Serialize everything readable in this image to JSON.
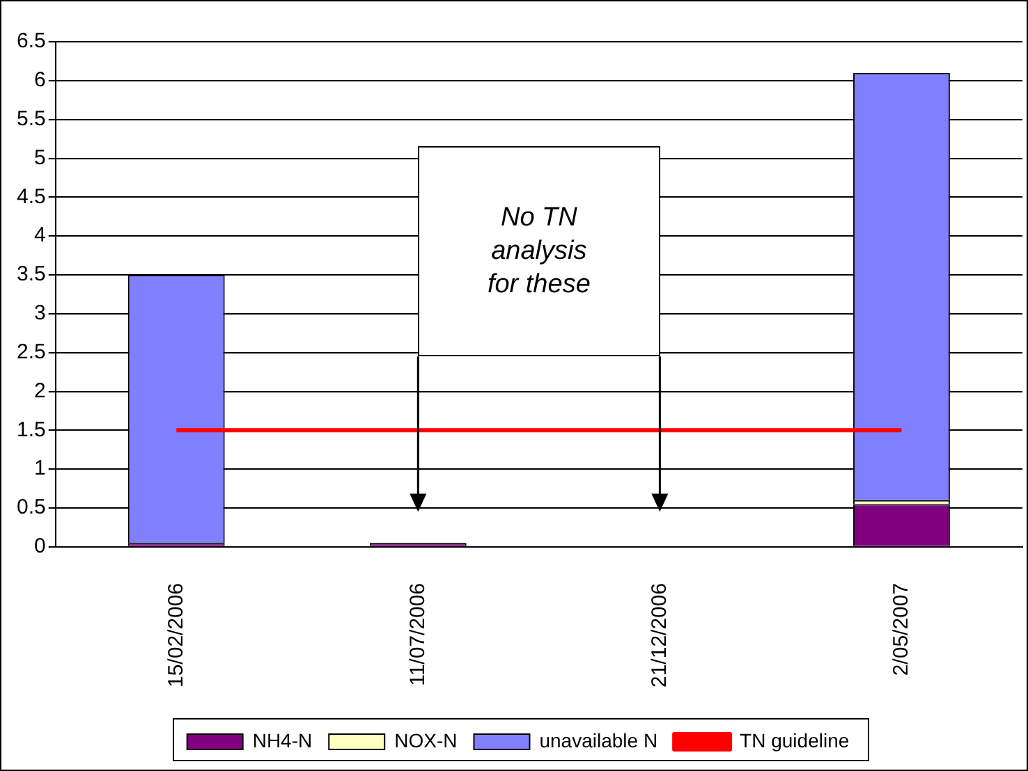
{
  "chart_data": {
    "type": "bar",
    "stacked": true,
    "categories": [
      "15/02/2006",
      "11/07/2006",
      "21/12/2006",
      "2/05/2007"
    ],
    "series": [
      {
        "name": "NH4-N",
        "color": "#800080",
        "values": [
          0.05,
          0.05,
          null,
          0.55
        ]
      },
      {
        "name": "NOX-N",
        "color": "#ffffc0",
        "values": [
          null,
          null,
          null,
          0.05
        ]
      },
      {
        "name": "unavailable N",
        "color": "#8080ff",
        "values": [
          3.45,
          null,
          null,
          5.5
        ]
      },
      {
        "name": "TN guideline",
        "type": "line",
        "color": "#ff0000",
        "values": [
          1.5,
          1.5,
          1.5,
          1.5
        ]
      }
    ],
    "ylim": [
      0,
      6.5
    ],
    "yticks": [
      0,
      0.5,
      1,
      1.5,
      2,
      2.5,
      3,
      3.5,
      4,
      4.5,
      5,
      5.5,
      6,
      6.5
    ],
    "grid": "y",
    "legend": "bottom",
    "marker": "none",
    "annotations": [
      "No TN analysis for these"
    ]
  }
}
